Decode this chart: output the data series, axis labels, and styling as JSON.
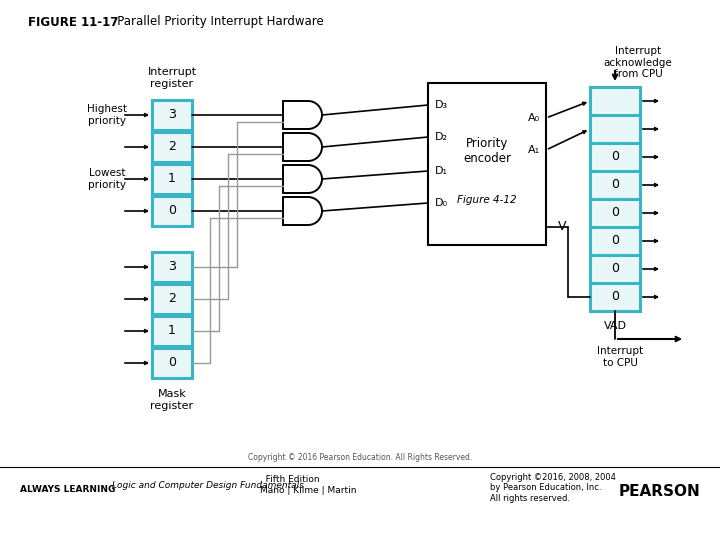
{
  "title_bold": "FIGURE 11-17",
  "title_rest": "   Parallel Priority Interrupt Hardware",
  "bg_color": "#ffffff",
  "cyan_color": "#38B6C5",
  "cyan_fill": "#EAF7F9",
  "box_edge": "#000000",
  "gray_line": "#999999",
  "footer_left_italic": "Logic and Computer Design Fundamentals",
  "footer_left_rest": ", Fifth Edition\nMano | Kilme | Martin",
  "footer_right": "Copyright ©2016, 2008, 2004\nby Pearson Education, Inc.\nAll rights reserved.",
  "footer_always": "ALWAYS LEARNING",
  "interrupt_register_label": "Interrupt\nregister",
  "mask_register_label": "Mask\nregister",
  "priority_encoder_label": "Priority\nencoder",
  "figure_label": "Figure 4-12",
  "highest_priority": "Highest\npriority",
  "lowest_priority": "Lowest\npriority",
  "interrupt_ack": "Interrupt\nacknowledge\nfrom CPU",
  "interrupt_cpu": "Interrupt\nto CPU",
  "vad_label": "VAD",
  "v_label": "V",
  "int_reg_values": [
    "3",
    "2",
    "1",
    "0"
  ],
  "mask_reg_values": [
    "3",
    "2",
    "1",
    "0"
  ],
  "output_values": [
    "",
    "",
    "0",
    "0",
    "0",
    "0",
    "0",
    "0"
  ],
  "A0_label": "A₀",
  "A1_label": "A₁",
  "D_labels": [
    "D₃",
    "D₂",
    "D₁",
    "D₀"
  ],
  "copyright_small": "Copyright © 2016 Pearson Education. All Rights Reserved."
}
